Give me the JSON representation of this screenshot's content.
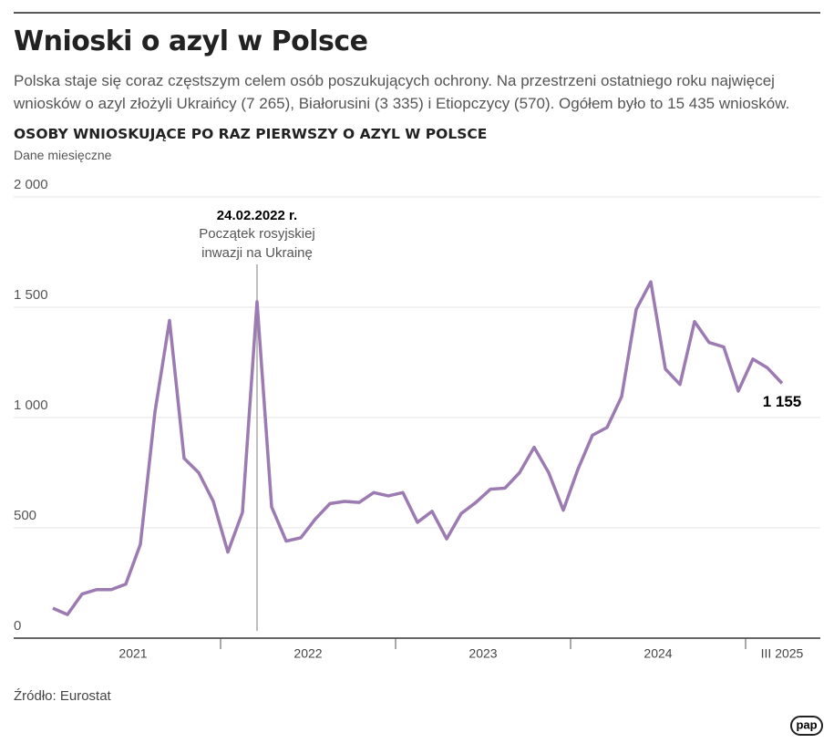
{
  "title": "Wnioski o azyl w Polsce",
  "subtitle": "Polska staje się coraz częstszym celem osób poszukujących ochrony. Na przestrzeni ostatniego roku najwięcej wniosków o azyl złożyli Ukraińcy (7 265), Białorusini (3 335) i Etiopczycy (570). Ogółem było to 15 435 wniosków.",
  "source": "Źródło: Eurostat",
  "logo": "pap",
  "chart_data": {
    "type": "line",
    "title": "OSOBY WNIOSKUJĄCE PO RAZ PIERWSZY O AZYL W POLSCE",
    "subtitle": "Dane miesięczne",
    "categories": [
      null,
      null,
      null,
      null,
      null,
      null,
      "2021",
      null,
      null,
      null,
      null,
      null,
      null,
      null,
      null,
      null,
      null,
      null,
      "2022",
      null,
      null,
      null,
      null,
      null,
      null,
      null,
      null,
      null,
      null,
      null,
      "2023",
      null,
      null,
      null,
      null,
      null,
      null,
      null,
      null,
      null,
      null,
      null,
      "2024",
      null,
      null,
      null,
      null,
      null,
      null,
      null,
      "III 2025"
    ],
    "series": [
      {
        "name": null,
        "color": "#9b7bb2",
        "values": [
          136,
          107,
          200,
          220,
          220,
          245,
          425,
          1025,
          1440,
          815,
          750,
          620,
          390,
          570,
          1525,
          595,
          440,
          455,
          540,
          610,
          620,
          615,
          660,
          645,
          660,
          525,
          575,
          450,
          565,
          615,
          675,
          680,
          750,
          865,
          750,
          580,
          765,
          920,
          955,
          1095,
          1490,
          1615,
          1220,
          1150,
          1435,
          1340,
          1320,
          1120,
          1265,
          1225,
          1155
        ],
        "value_labels": [
          null,
          null,
          null,
          null,
          null,
          null,
          null,
          null,
          null,
          null,
          null,
          null,
          null,
          null,
          null,
          null,
          null,
          null,
          null,
          null,
          null,
          null,
          null,
          null,
          null,
          null,
          null,
          null,
          null,
          null,
          null,
          null,
          null,
          null,
          null,
          null,
          null,
          null,
          null,
          null,
          null,
          null,
          null,
          null,
          null,
          null,
          null,
          null,
          null,
          null,
          "1 155"
        ]
      }
    ],
    "ylim": [
      0,
      2000
    ],
    "yticks": [
      0,
      500,
      {
        "value": 1000,
        "label": "1 000"
      },
      {
        "value": 1500,
        "label": "1 500"
      },
      {
        "value": 2000,
        "label": "2 000"
      }
    ],
    "grid": true,
    "annotation": {
      "index": 14,
      "title": "24.02.2022 r.",
      "lines": [
        "Początek rosyjskiej",
        "inwazji na Ukrainę"
      ]
    }
  }
}
